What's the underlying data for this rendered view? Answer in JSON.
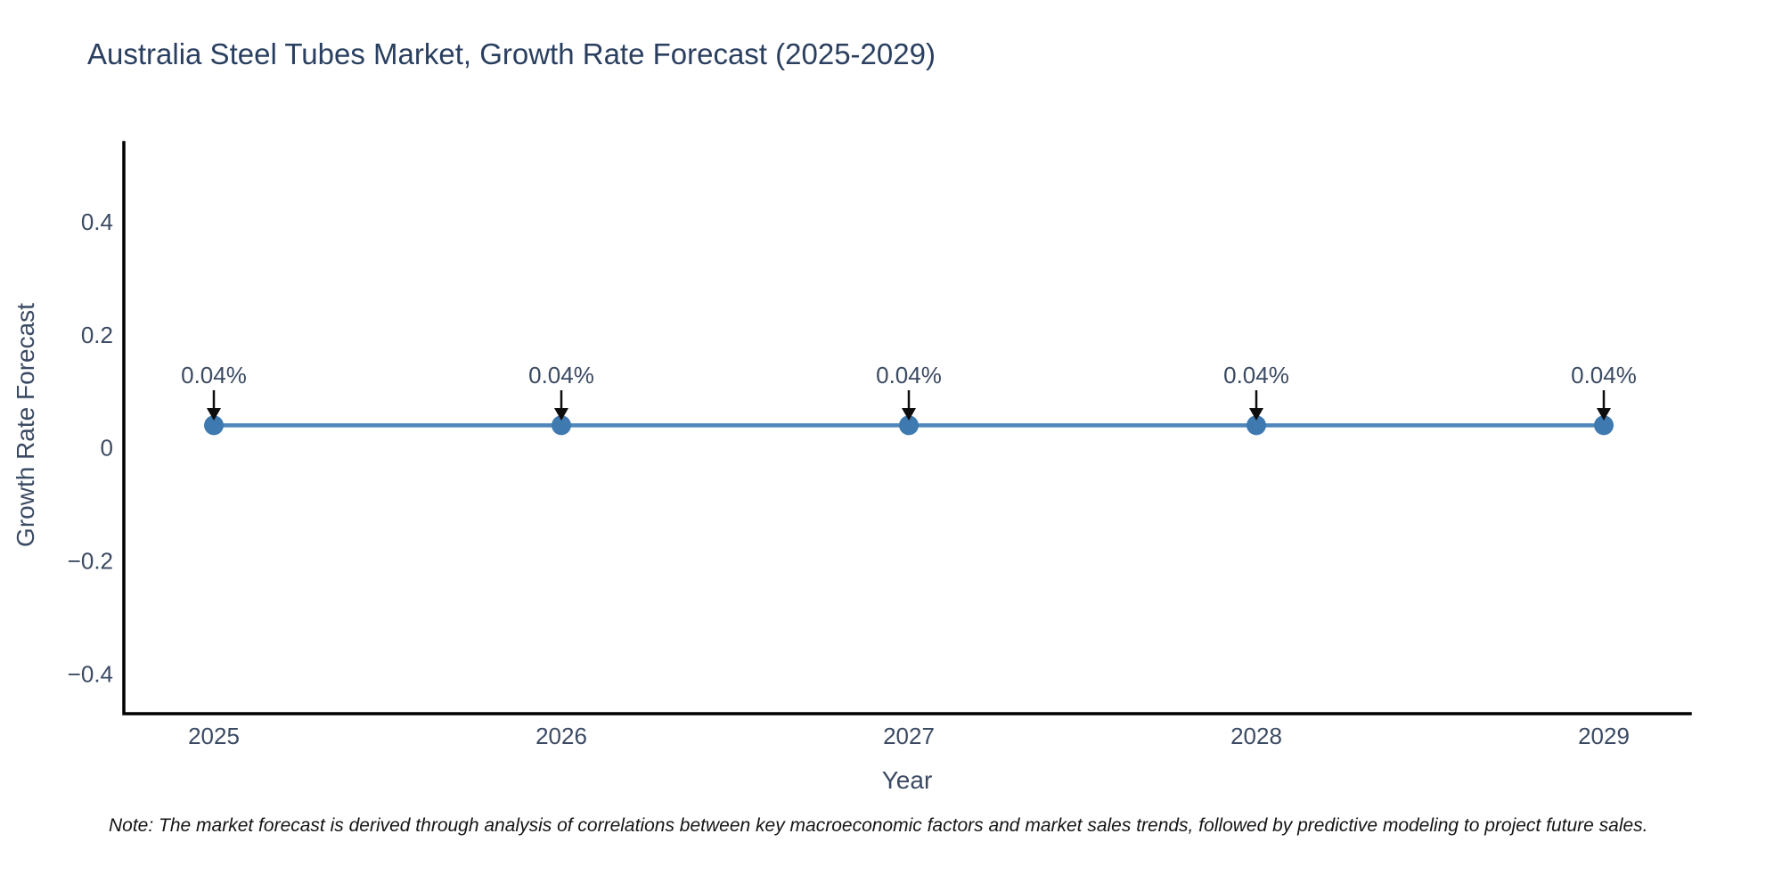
{
  "note": "Note: The market forecast is derived through analysis of correlations between key macroeconomic factors and market sales trends, followed by predictive modeling to project future sales.",
  "chart_data": {
    "type": "line",
    "title": "Australia Steel Tubes Market, Growth Rate Forecast (2025-2029)",
    "xlabel": "Year",
    "ylabel": "Growth Rate Forecast",
    "categories": [
      "2025",
      "2026",
      "2027",
      "2028",
      "2029"
    ],
    "series": [
      {
        "name": "Growth Rate Forecast",
        "values": [
          0.04,
          0.04,
          0.04,
          0.04,
          0.04
        ],
        "point_labels": [
          "0.04%",
          "0.04%",
          "0.04%",
          "0.04%",
          "0.04%"
        ]
      }
    ],
    "yticks": [
      0.4,
      0.2,
      0,
      -0.2,
      -0.4
    ],
    "ylim": [
      -0.47,
      0.54
    ],
    "grid": false,
    "legend_visible": false,
    "annotation_style": "label-with-down-arrow",
    "colors": {
      "line": "#4d86bb",
      "marker": "#3e79b0",
      "axis": "#000000",
      "title_text": "#2a3f5f",
      "tick_text": "#3b4a63",
      "annotation_text": "#3b4a63",
      "annotation_arrow": "#0d0d0d"
    }
  }
}
